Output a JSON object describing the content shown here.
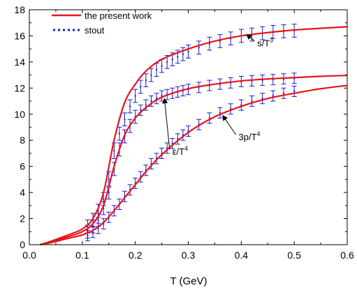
{
  "chart_data": {
    "type": "line",
    "xlabel": "T (GeV)",
    "ylabel": "",
    "xlim": [
      0.0,
      0.6
    ],
    "ylim": [
      0,
      18
    ],
    "x_ticks": [
      "0.0",
      "0.1",
      "0.2",
      "0.3",
      "0.4",
      "0.5",
      "0.6"
    ],
    "y_ticks": [
      "0",
      "2",
      "4",
      "6",
      "8",
      "10",
      "12",
      "14",
      "16",
      "18"
    ],
    "grid": false,
    "legend_position": "top-left",
    "legend": [
      {
        "label": "the present work",
        "style": "solid",
        "color": "#e8141a"
      },
      {
        "label": "stout",
        "style": "dotted",
        "color": "#1a1acc"
      }
    ],
    "series": [
      {
        "name": "the present work",
        "x": [
          0.02,
          0.04,
          0.06,
          0.08,
          0.1,
          0.12,
          0.14,
          0.16,
          0.18,
          0.2,
          0.22,
          0.25,
          0.3,
          0.35,
          0.4,
          0.45,
          0.5,
          0.55,
          0.6
        ],
        "y": [
          0.0,
          0.25,
          0.55,
          0.85,
          1.2,
          2.0,
          4.0,
          8.0,
          10.9,
          12.3,
          13.3,
          14.2,
          15.0,
          15.6,
          16.0,
          16.25,
          16.45,
          16.58,
          16.7
        ]
      },
      {
        "name": "the present work",
        "x": [
          0.02,
          0.04,
          0.06,
          0.08,
          0.1,
          0.12,
          0.14,
          0.16,
          0.18,
          0.2,
          0.22,
          0.25,
          0.3,
          0.35,
          0.4,
          0.45,
          0.5,
          0.55,
          0.6
        ],
        "y": [
          0.0,
          0.2,
          0.45,
          0.7,
          1.0,
          1.6,
          3.0,
          6.0,
          8.4,
          9.7,
          10.5,
          11.3,
          11.95,
          12.3,
          12.55,
          12.7,
          12.8,
          12.9,
          12.97
        ]
      },
      {
        "name": "the present work",
        "x": [
          0.02,
          0.04,
          0.06,
          0.08,
          0.1,
          0.12,
          0.14,
          0.16,
          0.18,
          0.2,
          0.22,
          0.25,
          0.3,
          0.35,
          0.4,
          0.45,
          0.5,
          0.55,
          0.6
        ],
        "y": [
          0.0,
          0.15,
          0.35,
          0.55,
          0.75,
          1.1,
          1.7,
          2.6,
          3.6,
          4.6,
          5.6,
          6.9,
          8.6,
          9.8,
          10.6,
          11.2,
          11.6,
          11.95,
          12.2
        ]
      },
      {
        "name": "stout",
        "x": [
          0.11,
          0.12,
          0.13,
          0.14,
          0.15,
          0.16,
          0.17,
          0.18,
          0.19,
          0.2,
          0.21,
          0.22,
          0.23,
          0.24,
          0.25,
          0.26,
          0.27,
          0.28,
          0.29,
          0.3,
          0.32,
          0.34,
          0.36,
          0.38,
          0.4,
          0.42,
          0.44,
          0.46,
          0.48,
          0.5
        ],
        "y": [
          1.4,
          1.9,
          2.6,
          3.5,
          5.0,
          7.2,
          8.5,
          9.6,
          10.6,
          11.4,
          12.1,
          12.6,
          13.0,
          13.4,
          13.7,
          14.0,
          14.2,
          14.4,
          14.6,
          14.8,
          15.1,
          15.4,
          15.6,
          15.8,
          16.0,
          16.1,
          16.2,
          16.3,
          16.35,
          16.4
        ],
        "err": [
          0.5,
          0.5,
          0.5,
          0.5,
          0.6,
          0.6,
          0.5,
          0.5,
          0.5,
          0.5,
          0.5,
          0.5,
          0.5,
          0.5,
          0.5,
          0.5,
          0.5,
          0.5,
          0.5,
          0.5,
          0.5,
          0.5,
          0.5,
          0.5,
          0.5,
          0.5,
          0.5,
          0.5,
          0.5,
          0.5
        ]
      },
      {
        "name": "stout",
        "x": [
          0.11,
          0.12,
          0.13,
          0.14,
          0.15,
          0.16,
          0.17,
          0.18,
          0.19,
          0.2,
          0.21,
          0.22,
          0.23,
          0.24,
          0.25,
          0.26,
          0.27,
          0.28,
          0.29,
          0.3,
          0.32,
          0.34,
          0.36,
          0.38,
          0.4,
          0.42,
          0.44,
          0.46,
          0.48,
          0.5
        ],
        "y": [
          1.0,
          1.4,
          1.9,
          2.8,
          4.0,
          5.8,
          7.3,
          8.3,
          9.1,
          9.8,
          10.3,
          10.7,
          11.0,
          11.2,
          11.4,
          11.5,
          11.6,
          11.7,
          11.8,
          11.9,
          12.05,
          12.2,
          12.3,
          12.4,
          12.5,
          12.55,
          12.6,
          12.65,
          12.7,
          12.75
        ],
        "err": [
          0.5,
          0.5,
          0.5,
          0.5,
          0.5,
          0.5,
          0.5,
          0.5,
          0.5,
          0.5,
          0.4,
          0.4,
          0.4,
          0.4,
          0.4,
          0.4,
          0.4,
          0.4,
          0.4,
          0.4,
          0.4,
          0.4,
          0.4,
          0.4,
          0.4,
          0.4,
          0.4,
          0.4,
          0.4,
          0.4
        ]
      },
      {
        "name": "stout",
        "x": [
          0.11,
          0.12,
          0.13,
          0.14,
          0.15,
          0.16,
          0.17,
          0.18,
          0.19,
          0.2,
          0.21,
          0.22,
          0.23,
          0.24,
          0.25,
          0.26,
          0.27,
          0.28,
          0.29,
          0.3,
          0.32,
          0.34,
          0.36,
          0.38,
          0.4,
          0.42,
          0.44,
          0.46,
          0.48,
          0.5
        ],
        "y": [
          0.7,
          0.95,
          1.25,
          1.6,
          2.1,
          2.6,
          3.1,
          3.7,
          4.2,
          4.7,
          5.2,
          5.7,
          6.2,
          6.6,
          7.0,
          7.4,
          7.75,
          8.1,
          8.4,
          8.7,
          9.2,
          9.7,
          10.1,
          10.4,
          10.7,
          11.0,
          11.2,
          11.4,
          11.6,
          11.75
        ],
        "err": [
          0.4,
          0.4,
          0.4,
          0.4,
          0.4,
          0.4,
          0.4,
          0.4,
          0.4,
          0.4,
          0.4,
          0.4,
          0.4,
          0.4,
          0.4,
          0.4,
          0.4,
          0.4,
          0.4,
          0.4,
          0.4,
          0.4,
          0.4,
          0.4,
          0.4,
          0.4,
          0.4,
          0.4,
          0.4,
          0.4
        ]
      }
    ],
    "annotations": [
      {
        "base": "s/T",
        "sup": "3",
        "label_at": [
          0.43,
          15.2
        ],
        "arrow_to": [
          0.41,
          16.1
        ]
      },
      {
        "base": "ε/T",
        "sup": "4",
        "label_at": [
          0.27,
          6.9
        ],
        "arrow_to": [
          0.255,
          11.2
        ]
      },
      {
        "base": "3p/T",
        "sup": "4",
        "label_at": [
          0.395,
          8.0
        ],
        "arrow_to": [
          0.365,
          9.9
        ]
      }
    ],
    "colors": {
      "model": "#e8141a",
      "data": "#1a1acc"
    }
  }
}
